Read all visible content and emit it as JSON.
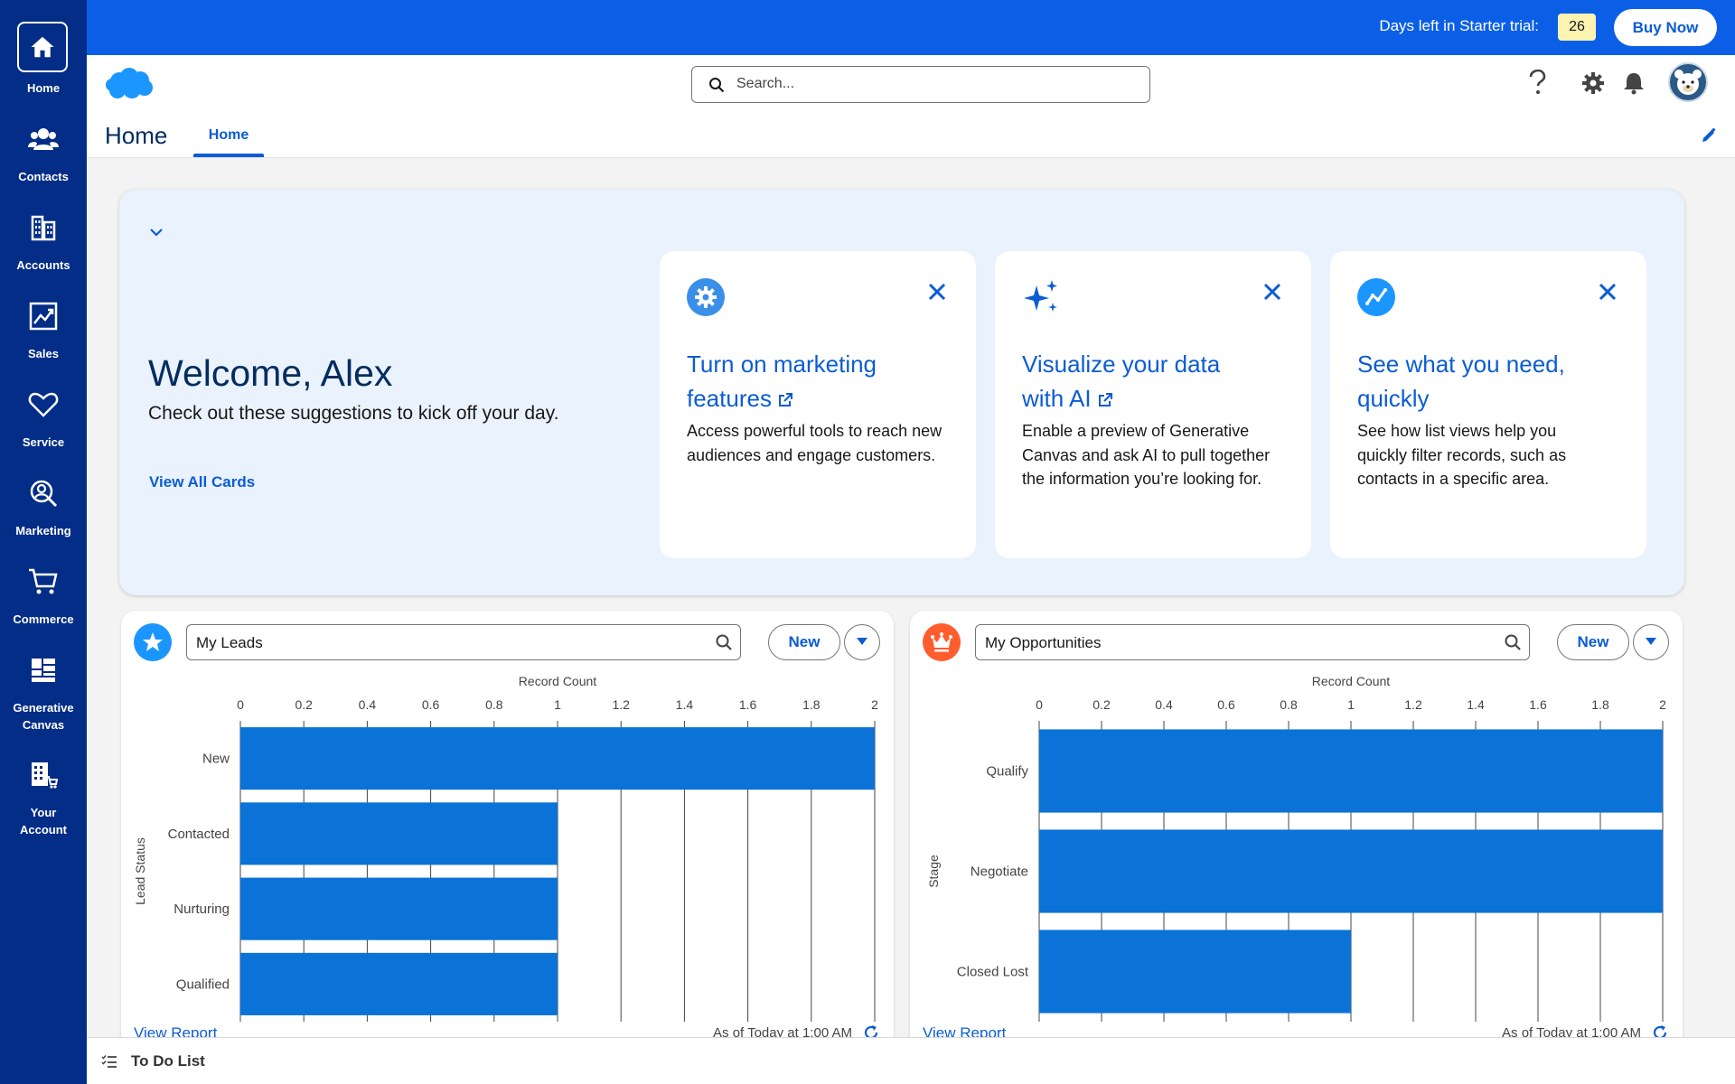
{
  "nav": {
    "items": [
      {
        "label": "Home",
        "icon": "home-icon"
      },
      {
        "label": "Contacts",
        "icon": "contacts-icon"
      },
      {
        "label": "Accounts",
        "icon": "accounts-icon"
      },
      {
        "label": "Sales",
        "icon": "sales-icon"
      },
      {
        "label": "Service",
        "icon": "service-icon"
      },
      {
        "label": "Marketing",
        "icon": "marketing-icon"
      },
      {
        "label": "Commerce",
        "icon": "commerce-icon"
      },
      {
        "label": "Generative\nCanvas",
        "icon": "generative-canvas-icon"
      },
      {
        "label": "Your\nAccount",
        "icon": "your-account-icon"
      }
    ]
  },
  "topbar": {
    "trial_label": "Days left in Starter trial:",
    "trial_days": "26",
    "buy_label": "Buy Now",
    "bg_color": "#0b5fe6"
  },
  "header": {
    "search_placeholder": "Search...",
    "page_title": "Home",
    "tab_label": "Home"
  },
  "welcome": {
    "title": "Welcome, Alex",
    "subtitle": "Check out these suggestions to kick off your day.",
    "view_all": "View All Cards",
    "cards": [
      {
        "title": "Turn on marketing features",
        "body": "Access powerful tools to reach new audiences and engage customers.",
        "icon": "gear-icon"
      },
      {
        "title": "Visualize your data with AI",
        "body": "Enable a preview of Generative Canvas and ask AI to pull together the information you’re looking for.",
        "icon": "sparkles-icon"
      },
      {
        "title": "See what you need, quickly",
        "body": "See how list views help you quickly filter records, such as contacts in a specific area.",
        "icon": "trend-icon"
      }
    ]
  },
  "leads": {
    "select_value": "My Leads",
    "new_label": "New",
    "view_report": "View Report",
    "timestamp": "As of Today at 1:00 AM"
  },
  "opps": {
    "select_value": "My Opportunities",
    "new_label": "New",
    "view_report": "View Report",
    "timestamp": "As of Today at 1:00 AM"
  },
  "chart_data": [
    {
      "type": "bar",
      "orientation": "horizontal",
      "xlabel": "Record Count",
      "ylabel": "Lead Status",
      "categories": [
        "New",
        "Contacted",
        "Nurturing",
        "Qualified"
      ],
      "values": [
        2,
        1,
        1,
        1
      ],
      "xlim": [
        0,
        2
      ],
      "ticks": [
        "0",
        "0.2",
        "0.4",
        "0.6",
        "0.8",
        "1",
        "1.2",
        "1.4",
        "1.6",
        "1.8",
        "2"
      ],
      "grid": true,
      "bar_color": "#0b72d8"
    },
    {
      "type": "bar",
      "orientation": "horizontal",
      "xlabel": "Record Count",
      "ylabel": "Stage",
      "categories": [
        "Qualify",
        "Negotiate",
        "Closed Lost"
      ],
      "values": [
        2,
        2,
        1
      ],
      "xlim": [
        0,
        2
      ],
      "ticks": [
        "0",
        "0.2",
        "0.4",
        "0.6",
        "0.8",
        "1",
        "1.2",
        "1.4",
        "1.6",
        "1.8",
        "2"
      ],
      "grid": true,
      "bar_color": "#0b72d8"
    }
  ],
  "todo": {
    "label": "To Do List"
  }
}
